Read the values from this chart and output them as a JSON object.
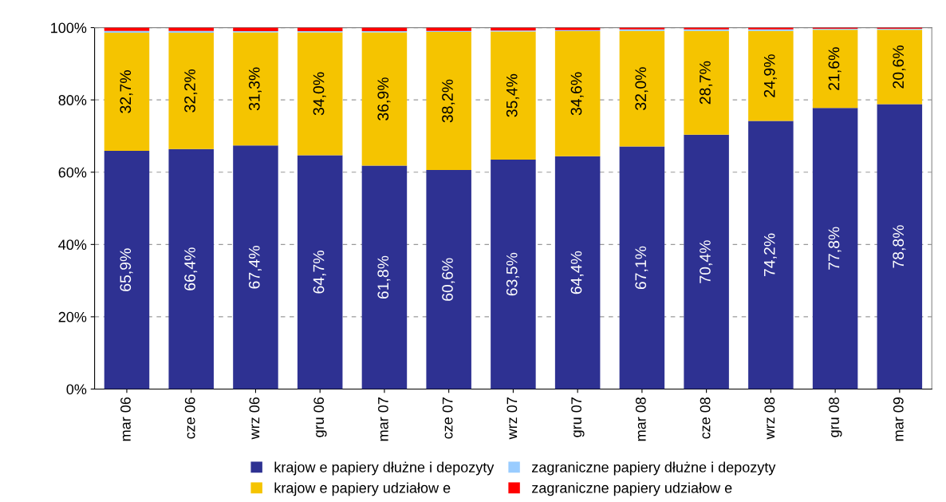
{
  "chart_data": {
    "type": "bar",
    "stacked": true,
    "categories": [
      "mar 06",
      "cze 06",
      "wrz 06",
      "gru 06",
      "mar 07",
      "cze 07",
      "wrz 07",
      "gru 07",
      "mar 08",
      "cze 08",
      "wrz 08",
      "gru 08",
      "mar 09"
    ],
    "series": [
      {
        "name": "krajow e papiery dłużne i depozyty",
        "color": "#2e3192",
        "values": [
          65.9,
          66.4,
          67.4,
          64.7,
          61.8,
          60.6,
          63.5,
          64.4,
          67.1,
          70.4,
          74.2,
          77.8,
          78.8
        ],
        "value_labels": [
          "65,9%",
          "66,4%",
          "67,4%",
          "64,7%",
          "61,8%",
          "60,6%",
          "63,5%",
          "64,4%",
          "67,1%",
          "70,4%",
          "74,2%",
          "77,8%",
          "78,8%"
        ]
      },
      {
        "name": "krajow e papiery udziałow e",
        "color": "#f5c400",
        "values": [
          32.7,
          32.2,
          31.3,
          34.0,
          36.9,
          38.2,
          35.4,
          34.6,
          32.0,
          28.7,
          24.9,
          21.6,
          20.6
        ],
        "value_labels": [
          "32,7%",
          "32,2%",
          "31,3%",
          "34,0%",
          "36,9%",
          "38,2%",
          "35,4%",
          "34,6%",
          "32,0%",
          "28,7%",
          "24,9%",
          "21,6%",
          "20,6%"
        ]
      },
      {
        "name": "zagraniczne papiery dłużne i depozyty",
        "color": "#99ccff",
        "values": [
          0.5,
          0.5,
          0.3,
          0.3,
          0.3,
          0.3,
          0.3,
          0.3,
          0.4,
          0.4,
          0.4,
          0.3,
          0.3
        ]
      },
      {
        "name": "zagraniczne papiery udziałow e",
        "color": "#ff0000",
        "values": [
          0.9,
          0.9,
          1.0,
          1.0,
          1.0,
          0.9,
          0.8,
          0.7,
          0.5,
          0.5,
          0.5,
          0.3,
          0.3
        ]
      }
    ],
    "ylim": [
      0,
      100
    ],
    "yticks": [
      {
        "value": 0,
        "label": "0%"
      },
      {
        "value": 20,
        "label": "20%"
      },
      {
        "value": 40,
        "label": "40%"
      },
      {
        "value": 60,
        "label": "60%"
      },
      {
        "value": 80,
        "label": "80%"
      },
      {
        "value": 100,
        "label": "100%"
      }
    ],
    "grid": "y",
    "legend": "bottom"
  }
}
